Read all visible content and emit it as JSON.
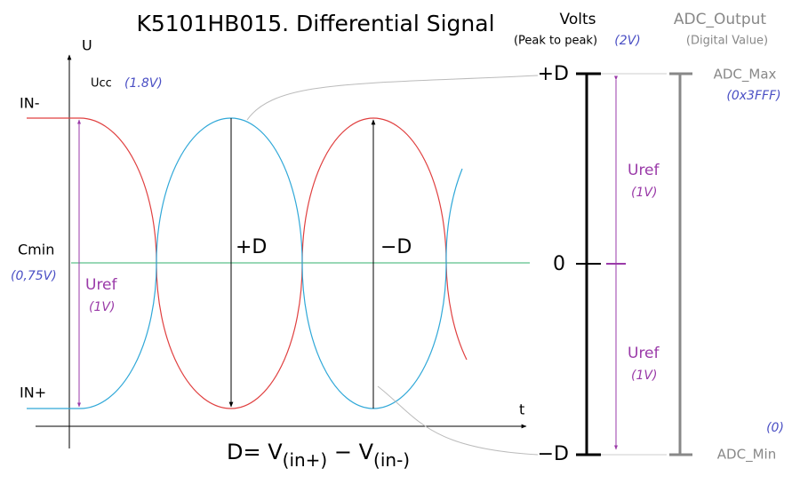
{
  "title": "K5101HB015. Differential Signal",
  "left_plot": {
    "y_axis_label": "U",
    "x_axis_label": "t",
    "ucc": {
      "label": "Ucc",
      "value": "(1.8V)"
    },
    "in_minus": "IN-",
    "cmin": {
      "label": "Cmin",
      "value": "(0,75V)"
    },
    "uref": {
      "label": "Uref",
      "value": "(1V)"
    },
    "in_plus": "IN+",
    "plus_d": "+D",
    "minus_d": "−D"
  },
  "formula": {
    "parts": [
      "D= V",
      "(in+)",
      " − V",
      "(in-)"
    ]
  },
  "volts_scale": {
    "title": "Volts",
    "subtitle": "(Peak to peak)",
    "subtitle_value": "(2V)",
    "top": "+D",
    "middle": "0",
    "bottom": "−D",
    "upper_uref": {
      "label": "Uref",
      "value": "(1V)"
    },
    "lower_uref": {
      "label": "Uref",
      "value": "(1V)"
    }
  },
  "adc_scale": {
    "title": "ADC_Output",
    "subtitle": "(Digital Value)",
    "max": "ADC_Max",
    "max_value": "(0x3FFF)",
    "min_value": "(0)",
    "min": "ADC_Min"
  }
}
